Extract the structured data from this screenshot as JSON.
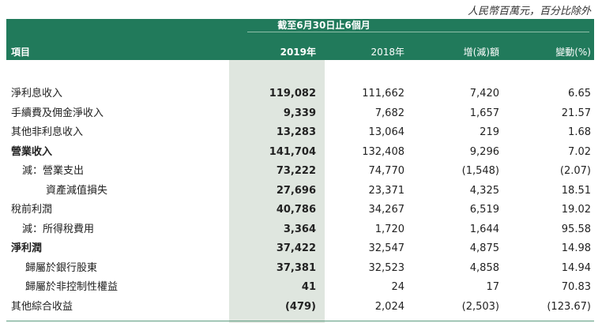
{
  "unit_note": "人民幣百萬元，百分比除外",
  "header": {
    "period": "截至6月30日止6個月",
    "item": "項目",
    "year_2019": "2019年",
    "year_2018": "2018年",
    "change": "增(減)額",
    "change_pct": "變動(%)"
  },
  "rows": [
    {
      "label": "淨利息收入",
      "v2019": "119,082",
      "v2018": "111,662",
      "change": "7,420",
      "pct": "6.65"
    },
    {
      "label": "手續費及佣金淨收入",
      "v2019": "9,339",
      "v2018": "7,682",
      "change": "1,657",
      "pct": "21.57"
    },
    {
      "label": "其他非利息收入",
      "v2019": "13,283",
      "v2018": "13,064",
      "change": "219",
      "pct": "1.68"
    },
    {
      "label": "營業收入",
      "v2019": "141,704",
      "v2018": "132,408",
      "change": "9,296",
      "pct": "7.02"
    },
    {
      "label": "減：營業支出",
      "v2019": "73,222",
      "v2018": "74,770",
      "change": "(1,548)",
      "pct": "(2.07)"
    },
    {
      "label": "資產減值損失",
      "v2019": "27,696",
      "v2018": "23,371",
      "change": "4,325",
      "pct": "18.51"
    },
    {
      "label": "稅前利潤",
      "v2019": "40,786",
      "v2018": "34,267",
      "change": "6,519",
      "pct": "19.02"
    },
    {
      "label": "減：所得稅費用",
      "v2019": "3,364",
      "v2018": "1,720",
      "change": "1,644",
      "pct": "95.58"
    },
    {
      "label": "淨利潤",
      "v2019": "37,422",
      "v2018": "32,547",
      "change": "4,875",
      "pct": "14.98"
    },
    {
      "label": "歸屬於銀行股東",
      "v2019": "37,381",
      "v2018": "32,523",
      "change": "4,858",
      "pct": "14.94"
    },
    {
      "label": "歸屬於非控制性權益",
      "v2019": "41",
      "v2018": "24",
      "change": "17",
      "pct": "70.83"
    },
    {
      "label": "其他綜合收益",
      "v2019": "(479)",
      "v2018": "2,024",
      "change": "(2,503)",
      "pct": "(123.67)"
    }
  ]
}
